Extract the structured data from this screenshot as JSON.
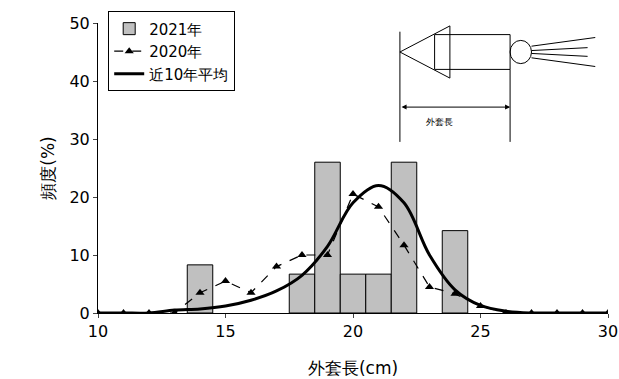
{
  "chart_data": {
    "type": "bar",
    "x": [
      10,
      11,
      12,
      13,
      14,
      15,
      16,
      17,
      18,
      19,
      20,
      21,
      22,
      23,
      24,
      25,
      26,
      27,
      28,
      29,
      30
    ],
    "xlim": [
      10,
      30
    ],
    "xticks": [
      10,
      15,
      20,
      25,
      30
    ],
    "ylim": [
      0,
      50
    ],
    "yticks": [
      0,
      10,
      20,
      30,
      40,
      50
    ],
    "x_label": "外套長(cm)",
    "y_label": "頻度(%)",
    "annotation": "外套長",
    "legend": "upper left",
    "series": [
      {
        "name": "2021年",
        "type": "bar",
        "color": "#c0c0c0",
        "values": [
          null,
          null,
          null,
          null,
          8.3,
          null,
          null,
          null,
          6.7,
          26,
          6.7,
          6.7,
          26,
          null,
          14.2,
          null,
          null,
          null,
          null,
          null,
          null
        ]
      },
      {
        "name": "2020年",
        "type": "line",
        "color": "#000000",
        "marker": "triangle",
        "line_style": "dashed",
        "values": [
          0,
          0,
          0,
          0,
          3.5,
          5.5,
          3.5,
          8,
          10,
          10,
          20.5,
          18.3,
          11.7,
          4.5,
          3.3,
          1.2,
          0,
          0,
          0,
          0,
          0
        ]
      },
      {
        "name": "近10年平均",
        "type": "line",
        "color": "#000000",
        "line_style": "solid",
        "values": [
          0,
          0,
          0,
          0.5,
          0.7,
          1.2,
          2.2,
          3.8,
          6.5,
          11.5,
          19,
          22,
          19,
          10,
          4,
          1.3,
          0.3,
          0,
          0,
          0,
          0
        ]
      }
    ]
  }
}
